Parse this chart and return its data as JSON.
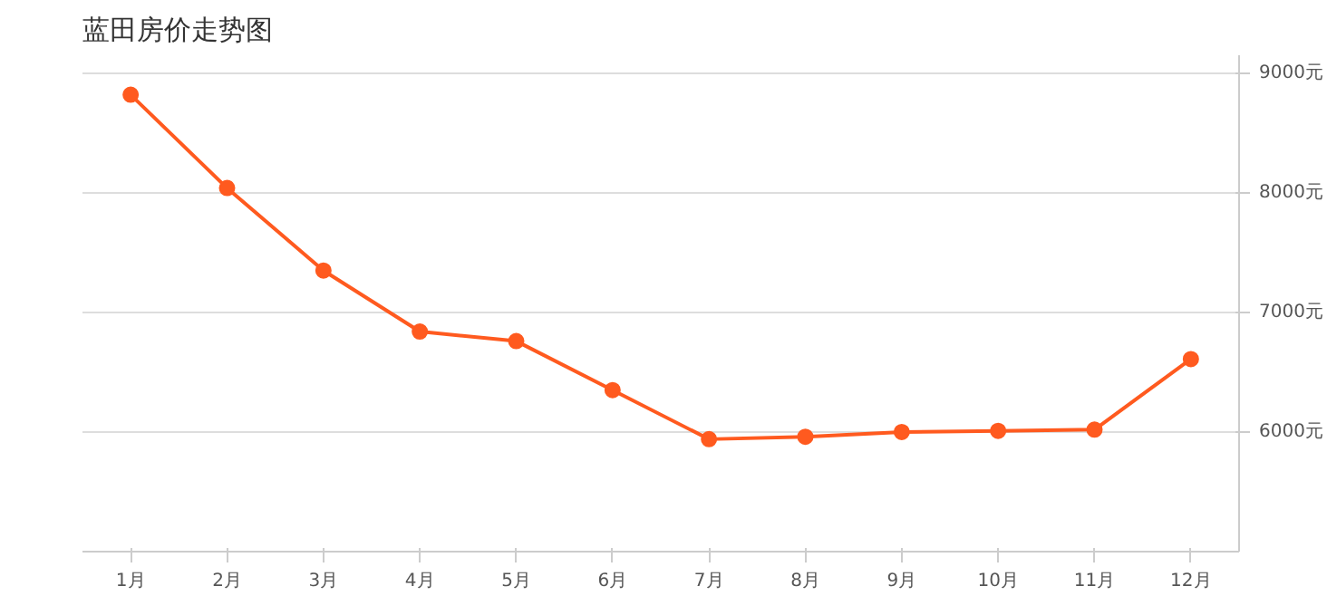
{
  "chart_data": {
    "type": "line",
    "title": "蓝田房价走势图",
    "categories": [
      "1月",
      "2月",
      "3月",
      "4月",
      "5月",
      "6月",
      "7月",
      "8月",
      "9月",
      "10月",
      "11月",
      "12月"
    ],
    "series": [
      {
        "color": "#ff5a1f",
        "values": [
          8820,
          8040,
          7350,
          6840,
          6760,
          6350,
          5940,
          5960,
          6000,
          6010,
          6020,
          6610
        ]
      }
    ],
    "ylim": [
      5000,
      9150
    ],
    "yticks": [
      {
        "value": 6000,
        "label": "6000元"
      },
      {
        "value": 7000,
        "label": "7000元"
      },
      {
        "value": 8000,
        "label": "8000元"
      },
      {
        "value": 9000,
        "label": "9000元"
      }
    ],
    "grid": "y",
    "marker": "circle",
    "line_style": "solid"
  }
}
